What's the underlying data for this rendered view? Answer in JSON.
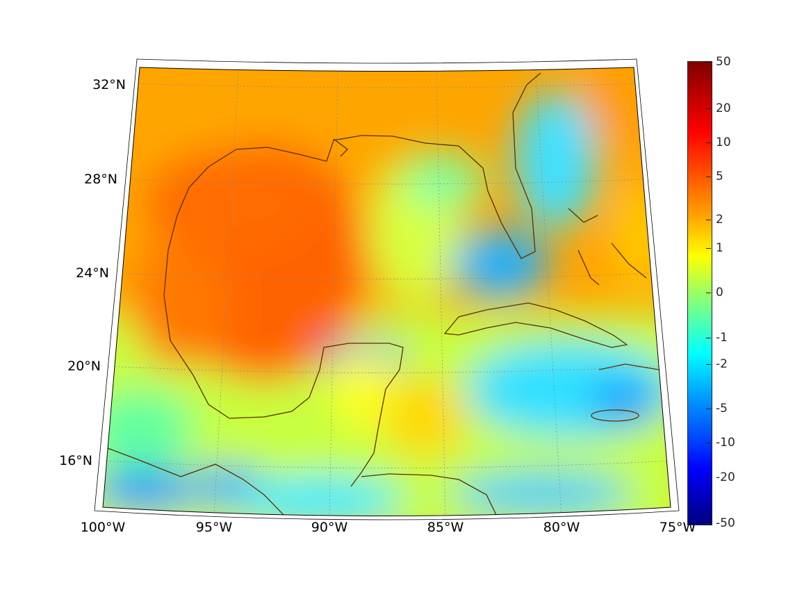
{
  "map": {
    "longitude_labels": [
      "100°W",
      "95°W",
      "90°W",
      "85°W",
      "80°W",
      "75°W"
    ],
    "latitude_labels": [
      "32°N",
      "28°N",
      "24°N",
      "20°N",
      "16°N"
    ]
  },
  "colorbar": {
    "ticks": [
      "50",
      "20",
      "10",
      "5",
      "2",
      "1",
      "0",
      "-1",
      "-2",
      "-5",
      "-10",
      "-20",
      "-50"
    ],
    "colormap": "jet"
  }
}
